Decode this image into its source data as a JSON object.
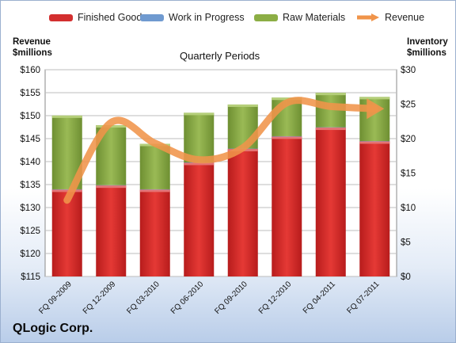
{
  "chart_data": {
    "type": "bar",
    "subtitle": "Quarterly Periods",
    "company": "QLogic Corp.",
    "left_axis_title": [
      "Revenue",
      "$millions"
    ],
    "right_axis_title": [
      "Inventory",
      "$millions"
    ],
    "categories": [
      "FQ 09-2009",
      "FQ 12-2009",
      "FQ 03-2010",
      "FQ 06-2010",
      "FQ 09-2010",
      "FQ 12-2010",
      "FQ 04-2011",
      "FQ 07-2011"
    ],
    "stacked": true,
    "left_ylim": [
      115,
      160
    ],
    "left_ticks": [
      "$115",
      "$120",
      "$125",
      "$130",
      "$135",
      "$140",
      "$145",
      "$150",
      "$155",
      "$160"
    ],
    "right_ylim": [
      0,
      30
    ],
    "right_ticks": [
      "$0",
      "$5",
      "$10",
      "$15",
      "$20",
      "$25",
      "$30"
    ],
    "grid": true,
    "legend_position": "top",
    "series": [
      {
        "name": "Finished Goods",
        "type": "bar",
        "axis": "right",
        "color": "#d32f2f",
        "values": [
          12.6,
          13.2,
          12.6,
          16.5,
          18.5,
          20.3,
          21.6,
          19.6
        ]
      },
      {
        "name": "Work in Progress",
        "type": "bar",
        "axis": "right",
        "color": "#4f81bd",
        "values": [
          0.05,
          0.05,
          0.05,
          0.05,
          0.05,
          0.05,
          0.05,
          0.05
        ]
      },
      {
        "name": "Raw Materials",
        "type": "bar",
        "axis": "right",
        "color": "#7f9f3f",
        "values": [
          10.7,
          8.7,
          6.6,
          7.2,
          6.4,
          5.6,
          5.0,
          6.4
        ]
      },
      {
        "name": "Revenue",
        "type": "line",
        "axis": "left",
        "color": "#f0944a",
        "values": [
          131.6,
          148.5,
          144.0,
          140.4,
          143.0,
          152.8,
          152.0,
          151.5
        ]
      }
    ]
  }
}
